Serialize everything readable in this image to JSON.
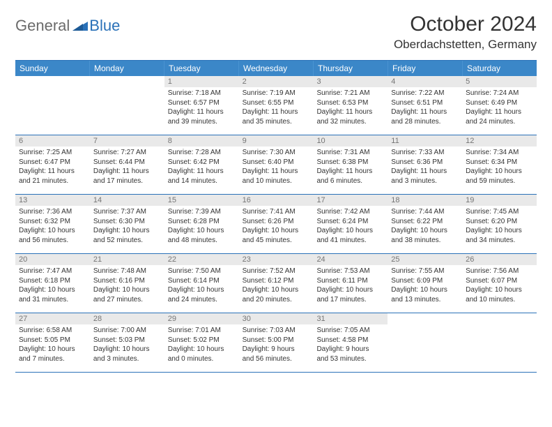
{
  "logo": {
    "word1": "General",
    "word2": "Blue"
  },
  "title": {
    "month": "October 2024",
    "location": "Oberdachstetten, Germany"
  },
  "colors": {
    "header_bg": "#3b87c8",
    "border": "#2a71b8",
    "daynum_bg": "#e9e9e9",
    "daynum_text": "#757575",
    "text": "#333333",
    "logo_gray": "#6b6b6b",
    "logo_blue": "#2a71b8",
    "white": "#ffffff"
  },
  "dow": [
    "Sunday",
    "Monday",
    "Tuesday",
    "Wednesday",
    "Thursday",
    "Friday",
    "Saturday"
  ],
  "weeks": [
    [
      {
        "empty": true
      },
      {
        "empty": true
      },
      {
        "day": "1",
        "sunrise": "Sunrise: 7:18 AM",
        "sunset": "Sunset: 6:57 PM",
        "daylight1": "Daylight: 11 hours",
        "daylight2": "and 39 minutes."
      },
      {
        "day": "2",
        "sunrise": "Sunrise: 7:19 AM",
        "sunset": "Sunset: 6:55 PM",
        "daylight1": "Daylight: 11 hours",
        "daylight2": "and 35 minutes."
      },
      {
        "day": "3",
        "sunrise": "Sunrise: 7:21 AM",
        "sunset": "Sunset: 6:53 PM",
        "daylight1": "Daylight: 11 hours",
        "daylight2": "and 32 minutes."
      },
      {
        "day": "4",
        "sunrise": "Sunrise: 7:22 AM",
        "sunset": "Sunset: 6:51 PM",
        "daylight1": "Daylight: 11 hours",
        "daylight2": "and 28 minutes."
      },
      {
        "day": "5",
        "sunrise": "Sunrise: 7:24 AM",
        "sunset": "Sunset: 6:49 PM",
        "daylight1": "Daylight: 11 hours",
        "daylight2": "and 24 minutes."
      }
    ],
    [
      {
        "day": "6",
        "sunrise": "Sunrise: 7:25 AM",
        "sunset": "Sunset: 6:47 PM",
        "daylight1": "Daylight: 11 hours",
        "daylight2": "and 21 minutes."
      },
      {
        "day": "7",
        "sunrise": "Sunrise: 7:27 AM",
        "sunset": "Sunset: 6:44 PM",
        "daylight1": "Daylight: 11 hours",
        "daylight2": "and 17 minutes."
      },
      {
        "day": "8",
        "sunrise": "Sunrise: 7:28 AM",
        "sunset": "Sunset: 6:42 PM",
        "daylight1": "Daylight: 11 hours",
        "daylight2": "and 14 minutes."
      },
      {
        "day": "9",
        "sunrise": "Sunrise: 7:30 AM",
        "sunset": "Sunset: 6:40 PM",
        "daylight1": "Daylight: 11 hours",
        "daylight2": "and 10 minutes."
      },
      {
        "day": "10",
        "sunrise": "Sunrise: 7:31 AM",
        "sunset": "Sunset: 6:38 PM",
        "daylight1": "Daylight: 11 hours",
        "daylight2": "and 6 minutes."
      },
      {
        "day": "11",
        "sunrise": "Sunrise: 7:33 AM",
        "sunset": "Sunset: 6:36 PM",
        "daylight1": "Daylight: 11 hours",
        "daylight2": "and 3 minutes."
      },
      {
        "day": "12",
        "sunrise": "Sunrise: 7:34 AM",
        "sunset": "Sunset: 6:34 PM",
        "daylight1": "Daylight: 10 hours",
        "daylight2": "and 59 minutes."
      }
    ],
    [
      {
        "day": "13",
        "sunrise": "Sunrise: 7:36 AM",
        "sunset": "Sunset: 6:32 PM",
        "daylight1": "Daylight: 10 hours",
        "daylight2": "and 56 minutes."
      },
      {
        "day": "14",
        "sunrise": "Sunrise: 7:37 AM",
        "sunset": "Sunset: 6:30 PM",
        "daylight1": "Daylight: 10 hours",
        "daylight2": "and 52 minutes."
      },
      {
        "day": "15",
        "sunrise": "Sunrise: 7:39 AM",
        "sunset": "Sunset: 6:28 PM",
        "daylight1": "Daylight: 10 hours",
        "daylight2": "and 48 minutes."
      },
      {
        "day": "16",
        "sunrise": "Sunrise: 7:41 AM",
        "sunset": "Sunset: 6:26 PM",
        "daylight1": "Daylight: 10 hours",
        "daylight2": "and 45 minutes."
      },
      {
        "day": "17",
        "sunrise": "Sunrise: 7:42 AM",
        "sunset": "Sunset: 6:24 PM",
        "daylight1": "Daylight: 10 hours",
        "daylight2": "and 41 minutes."
      },
      {
        "day": "18",
        "sunrise": "Sunrise: 7:44 AM",
        "sunset": "Sunset: 6:22 PM",
        "daylight1": "Daylight: 10 hours",
        "daylight2": "and 38 minutes."
      },
      {
        "day": "19",
        "sunrise": "Sunrise: 7:45 AM",
        "sunset": "Sunset: 6:20 PM",
        "daylight1": "Daylight: 10 hours",
        "daylight2": "and 34 minutes."
      }
    ],
    [
      {
        "day": "20",
        "sunrise": "Sunrise: 7:47 AM",
        "sunset": "Sunset: 6:18 PM",
        "daylight1": "Daylight: 10 hours",
        "daylight2": "and 31 minutes."
      },
      {
        "day": "21",
        "sunrise": "Sunrise: 7:48 AM",
        "sunset": "Sunset: 6:16 PM",
        "daylight1": "Daylight: 10 hours",
        "daylight2": "and 27 minutes."
      },
      {
        "day": "22",
        "sunrise": "Sunrise: 7:50 AM",
        "sunset": "Sunset: 6:14 PM",
        "daylight1": "Daylight: 10 hours",
        "daylight2": "and 24 minutes."
      },
      {
        "day": "23",
        "sunrise": "Sunrise: 7:52 AM",
        "sunset": "Sunset: 6:12 PM",
        "daylight1": "Daylight: 10 hours",
        "daylight2": "and 20 minutes."
      },
      {
        "day": "24",
        "sunrise": "Sunrise: 7:53 AM",
        "sunset": "Sunset: 6:11 PM",
        "daylight1": "Daylight: 10 hours",
        "daylight2": "and 17 minutes."
      },
      {
        "day": "25",
        "sunrise": "Sunrise: 7:55 AM",
        "sunset": "Sunset: 6:09 PM",
        "daylight1": "Daylight: 10 hours",
        "daylight2": "and 13 minutes."
      },
      {
        "day": "26",
        "sunrise": "Sunrise: 7:56 AM",
        "sunset": "Sunset: 6:07 PM",
        "daylight1": "Daylight: 10 hours",
        "daylight2": "and 10 minutes."
      }
    ],
    [
      {
        "day": "27",
        "sunrise": "Sunrise: 6:58 AM",
        "sunset": "Sunset: 5:05 PM",
        "daylight1": "Daylight: 10 hours",
        "daylight2": "and 7 minutes."
      },
      {
        "day": "28",
        "sunrise": "Sunrise: 7:00 AM",
        "sunset": "Sunset: 5:03 PM",
        "daylight1": "Daylight: 10 hours",
        "daylight2": "and 3 minutes."
      },
      {
        "day": "29",
        "sunrise": "Sunrise: 7:01 AM",
        "sunset": "Sunset: 5:02 PM",
        "daylight1": "Daylight: 10 hours",
        "daylight2": "and 0 minutes."
      },
      {
        "day": "30",
        "sunrise": "Sunrise: 7:03 AM",
        "sunset": "Sunset: 5:00 PM",
        "daylight1": "Daylight: 9 hours",
        "daylight2": "and 56 minutes."
      },
      {
        "day": "31",
        "sunrise": "Sunrise: 7:05 AM",
        "sunset": "Sunset: 4:58 PM",
        "daylight1": "Daylight: 9 hours",
        "daylight2": "and 53 minutes."
      },
      {
        "empty": true
      },
      {
        "empty": true
      }
    ]
  ]
}
